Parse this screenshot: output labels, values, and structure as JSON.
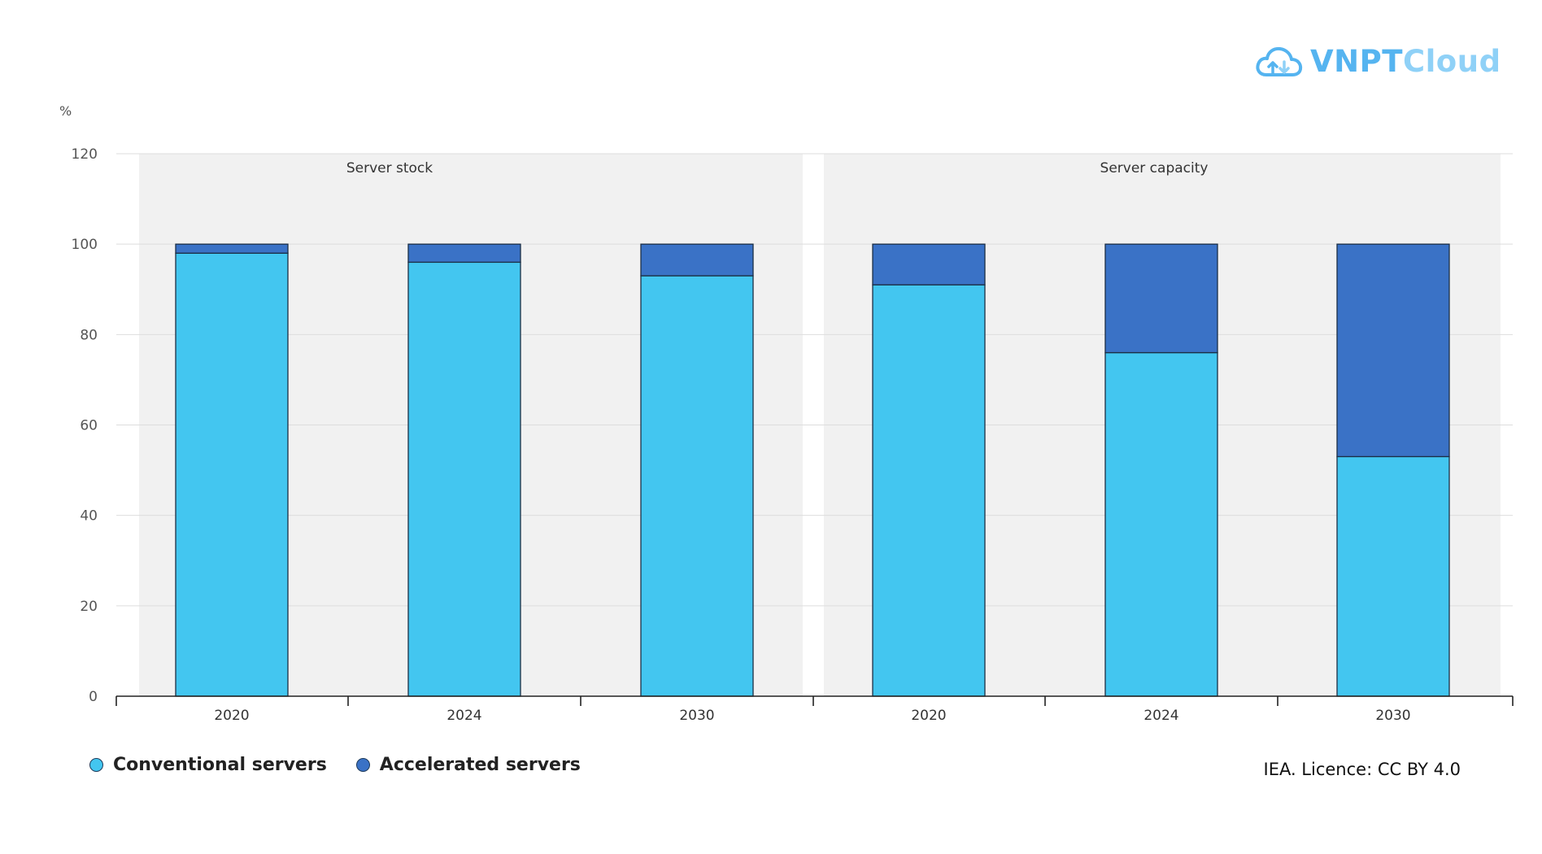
{
  "brand": {
    "name_part1": "VNPT",
    "name_part2": "Cloud",
    "icon": "cloud-upload-icon",
    "color_primary": "#55b4f0",
    "color_secondary": "#8fd1f7"
  },
  "credit": "IEA. Licence: CC BY 4.0",
  "colors": {
    "conventional": "#43c6f0",
    "accelerated": "#3a72c6",
    "panel_bg": "#f1f1f1",
    "grid": "#dddddd",
    "bar_border": "#1c2f45"
  },
  "chart_data": {
    "type": "bar",
    "stacked": true,
    "ylabel": "%",
    "ylim": [
      0,
      120
    ],
    "yticks": [
      0,
      20,
      40,
      60,
      80,
      100,
      120
    ],
    "grid": true,
    "legend_position": "bottom-left",
    "panels": [
      {
        "title": "Server stock",
        "categories": [
          "2020",
          "2024",
          "2030"
        ],
        "series": [
          {
            "name": "Conventional servers",
            "values": [
              98,
              96,
              93
            ]
          },
          {
            "name": "Accelerated servers",
            "values": [
              2,
              4,
              7
            ]
          }
        ]
      },
      {
        "title": "Server capacity",
        "categories": [
          "2020",
          "2024",
          "2030"
        ],
        "series": [
          {
            "name": "Conventional servers",
            "values": [
              91,
              76,
              53
            ]
          },
          {
            "name": "Accelerated servers",
            "values": [
              9,
              24,
              47
            ]
          }
        ]
      }
    ]
  },
  "legend": {
    "items": [
      {
        "label": "Conventional servers",
        "color": "#43c6f0"
      },
      {
        "label": "Accelerated servers",
        "color": "#3a72c6"
      }
    ]
  }
}
